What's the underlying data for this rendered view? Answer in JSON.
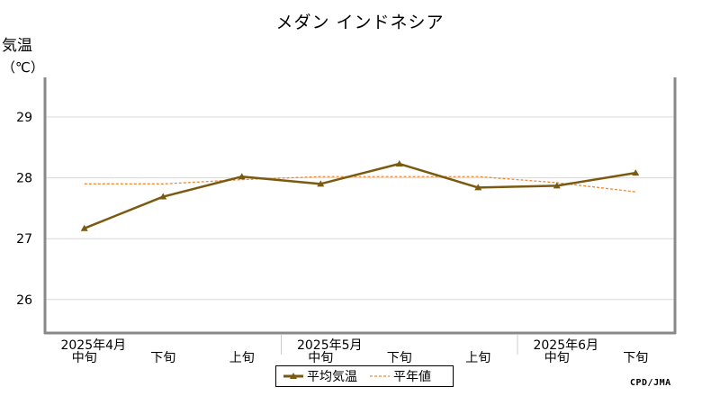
{
  "title": "メダン インドネシア",
  "y_axis": {
    "label": "気温",
    "unit": "（℃）"
  },
  "legend": {
    "series1": "平均気温",
    "series2": "平年値"
  },
  "credit": "CPD/JMA",
  "colors": {
    "actual": "#7a5a10",
    "normal": "#f08a30",
    "frame": "#888888",
    "grid": "#d8d8d8"
  },
  "chart_data": {
    "type": "line",
    "x_ticks": [
      "中旬",
      "下旬",
      "上旬",
      "中旬",
      "下旬",
      "上旬",
      "中旬",
      "下旬"
    ],
    "month_labels": [
      {
        "label": "2025年4月",
        "index": 0
      },
      {
        "label": "2025年5月",
        "index": 3
      },
      {
        "label": "2025年6月",
        "index": 6
      }
    ],
    "series": [
      {
        "name": "平均気温",
        "values": [
          27.17,
          27.69,
          28.02,
          27.9,
          28.23,
          27.84,
          27.87,
          28.08
        ],
        "marker": "triangle",
        "style": "solid"
      },
      {
        "name": "平年値",
        "values": [
          27.9,
          27.9,
          27.97,
          28.02,
          28.02,
          28.02,
          27.92,
          27.77
        ],
        "style": "dashed"
      }
    ],
    "ylim": [
      25.45,
      29.65
    ],
    "y_ticks": [
      26,
      27,
      28,
      29
    ],
    "grid": true,
    "legend_position": "bottom-center"
  }
}
